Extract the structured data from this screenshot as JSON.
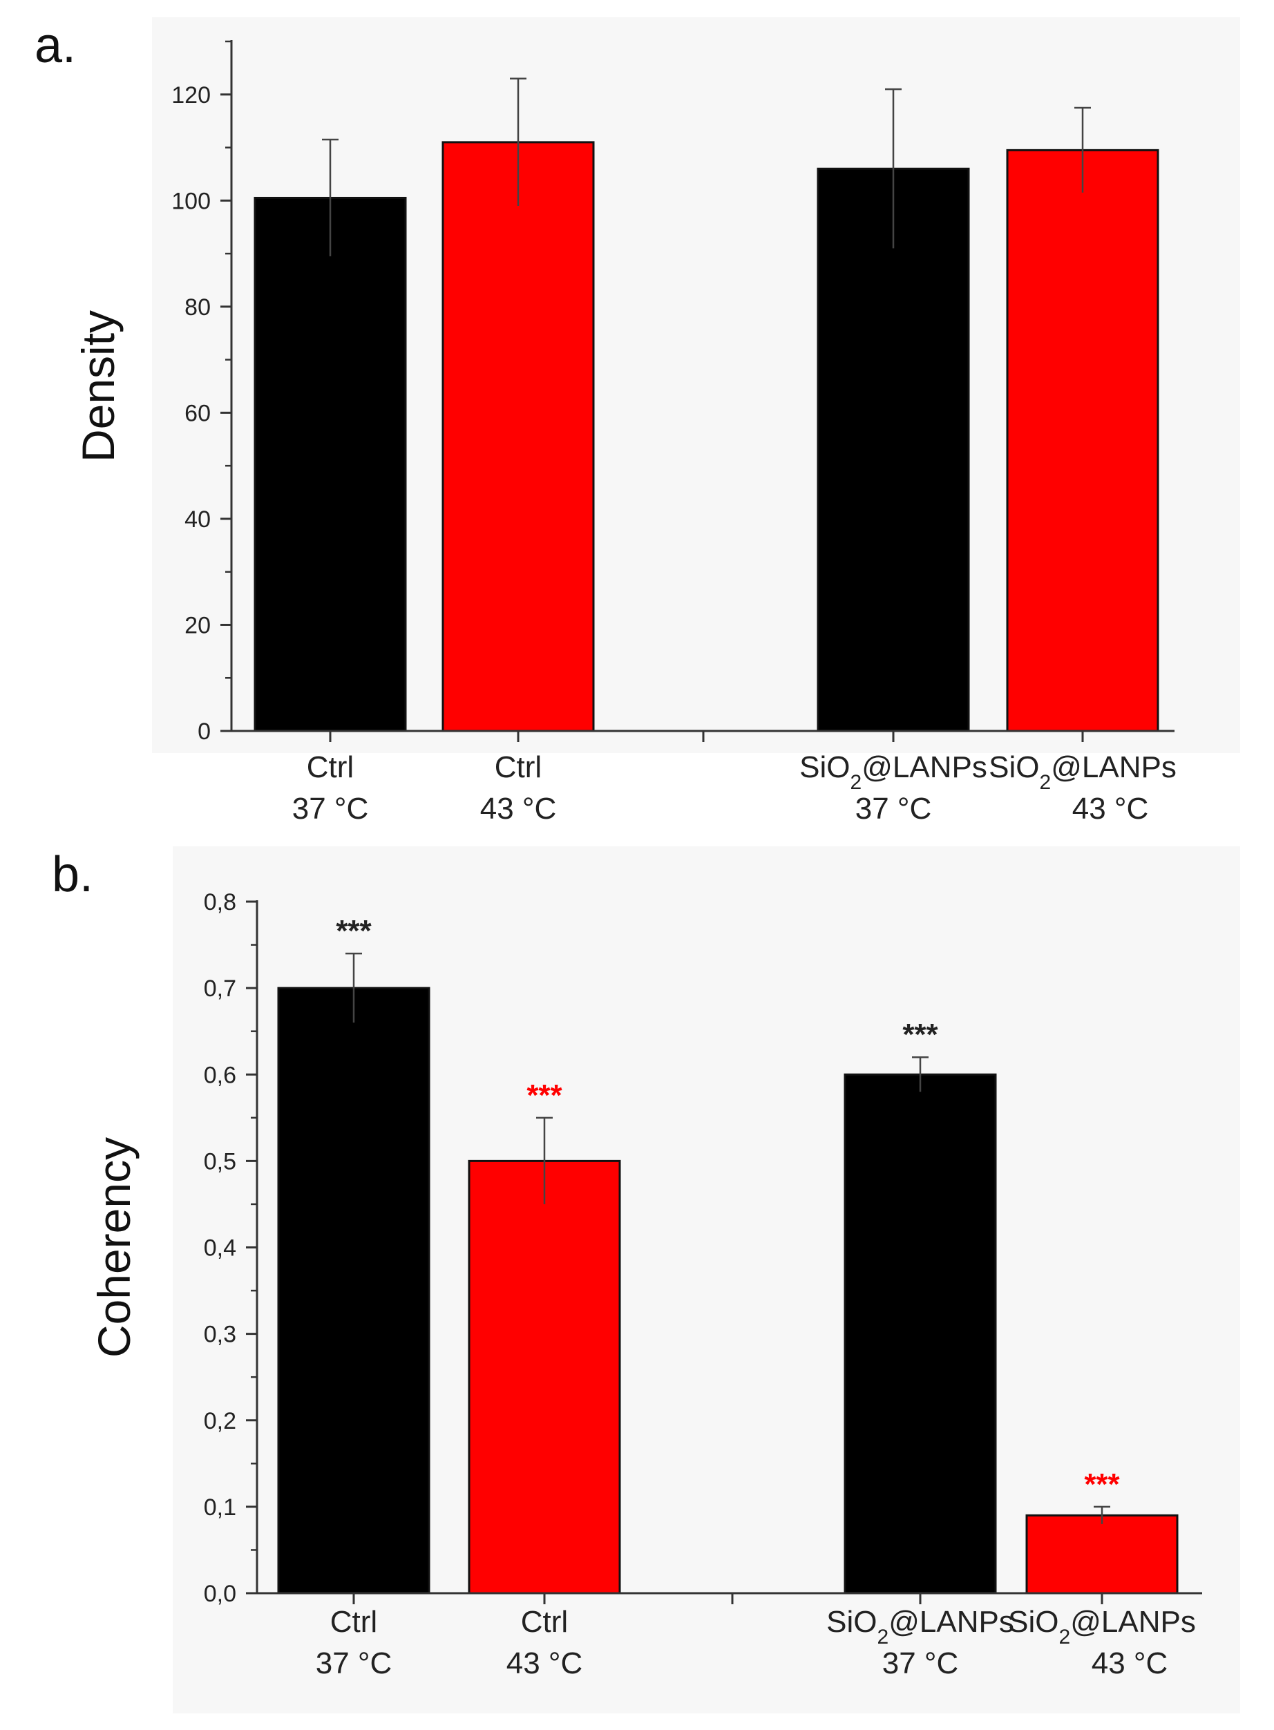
{
  "chart_data": [
    {
      "panel": "a.",
      "type": "bar",
      "ylabel": "Density",
      "ylim": [
        0,
        130
      ],
      "yticks": [
        0,
        20,
        40,
        60,
        80,
        100,
        120
      ],
      "ytick_labels": [
        "0",
        "20",
        "40",
        "60",
        "80",
        "100",
        "120"
      ],
      "bars": [
        {
          "line1": "Ctrl",
          "sub": "",
          "line1_tail": "",
          "line2": "37 °C",
          "value": 100.5,
          "error": 11,
          "color": "#000000",
          "sig": ""
        },
        {
          "line1": "Ctrl",
          "sub": "",
          "line1_tail": "",
          "line2": "43 °C",
          "value": 111,
          "error": 12,
          "color": "#ff0000",
          "sig": ""
        },
        {
          "line1": "SiO",
          "sub": "2",
          "line1_tail": "@LANPs",
          "line2": "37 °C",
          "value": 106,
          "error": 15,
          "color": "#000000",
          "sig": ""
        },
        {
          "line1": "SiO",
          "sub": "2",
          "line1_tail": "@LANPs",
          "line2": "43 °C",
          "value": 109.5,
          "error": 8,
          "color": "#ff0000",
          "sig": ""
        }
      ]
    },
    {
      "panel": "b.",
      "type": "bar",
      "ylabel": "Coherency",
      "ylim": [
        0,
        0.8
      ],
      "yticks": [
        0,
        0.1,
        0.2,
        0.3,
        0.4,
        0.5,
        0.6,
        0.7,
        0.8
      ],
      "ytick_labels": [
        "0,0",
        "0,1",
        "0,2",
        "0,3",
        "0,4",
        "0,5",
        "0,6",
        "0,7",
        "0,8"
      ],
      "bars": [
        {
          "line1": "Ctrl",
          "sub": "",
          "line1_tail": "",
          "line2": "37 °C",
          "value": 0.7,
          "error": 0.04,
          "color": "#000000",
          "sig": "***",
          "sig_color": "#222222"
        },
        {
          "line1": "Ctrl",
          "sub": "",
          "line1_tail": "",
          "line2": "43 °C",
          "value": 0.5,
          "error": 0.05,
          "color": "#ff0000",
          "sig": "***",
          "sig_color": "#ff0000"
        },
        {
          "line1": "SiO",
          "sub": "2",
          "line1_tail": "@LANPs",
          "line2": "37 °C",
          "value": 0.6,
          "error": 0.02,
          "color": "#000000",
          "sig": "***",
          "sig_color": "#222222"
        },
        {
          "line1": "SiO",
          "sub": "2",
          "line1_tail": "@LANPs",
          "line2": "43 °C",
          "value": 0.09,
          "error": 0.01,
          "color": "#ff0000",
          "sig": "***",
          "sig_color": "#ff0000"
        }
      ]
    }
  ]
}
